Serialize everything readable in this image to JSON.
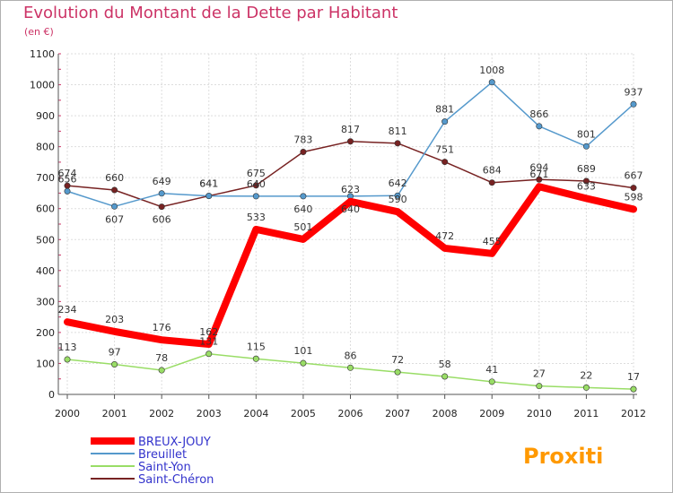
{
  "title": "Evolution du Montant de la Dette par Habitant",
  "subtitle": "(en €)",
  "watermark": "Proxiti",
  "chart_data": {
    "type": "line",
    "title": "Evolution du Montant de la Dette par Habitant",
    "ylabel": "(en €)",
    "x": [
      "2000",
      "2001",
      "2002",
      "2003",
      "2004",
      "2005",
      "2006",
      "2007",
      "2008",
      "2009",
      "2010",
      "2011",
      "2012"
    ],
    "ylim": [
      0,
      1100
    ],
    "yticks": [
      0,
      100,
      200,
      300,
      400,
      500,
      600,
      700,
      800,
      900,
      1000,
      1100
    ],
    "grid": true,
    "legend_position": "bottom-left",
    "series": [
      {
        "name": "BREUX-JOUY",
        "color": "#ff0000",
        "values": [
          234,
          203,
          176,
          162,
          533,
          501,
          623,
          590,
          472,
          455,
          671,
          633,
          598
        ]
      },
      {
        "name": "Breuillet",
        "color": "#5599cc",
        "values": [
          656,
          607,
          649,
          641,
          640,
          640,
          640,
          642,
          881,
          1008,
          866,
          801,
          937
        ]
      },
      {
        "name": "Saint-Yon",
        "color": "#99dd66",
        "values": [
          113,
          97,
          78,
          131,
          115,
          101,
          86,
          72,
          58,
          41,
          27,
          22,
          17
        ]
      },
      {
        "name": "Saint-Chéron",
        "color": "#772222",
        "values": [
          674,
          660,
          606,
          641,
          675,
          783,
          817,
          811,
          751,
          684,
          694,
          689,
          667
        ]
      }
    ]
  }
}
